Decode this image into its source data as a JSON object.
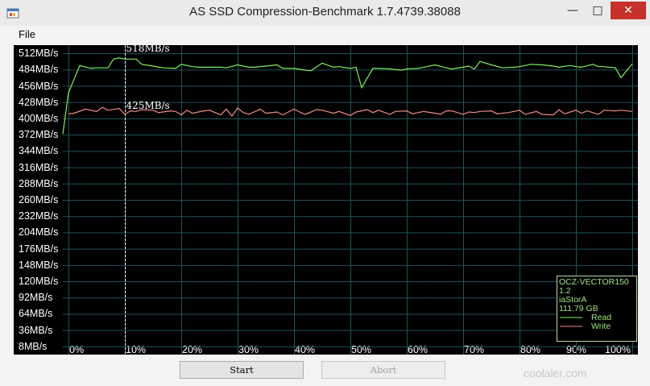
{
  "window": {
    "title": "AS SSD Compression-Benchmark 1.7.4739.38088",
    "minimize": "—",
    "maximize": "□",
    "close": "✕",
    "close_color": "#c7302b"
  },
  "menu": {
    "file": "File"
  },
  "chart_data": {
    "type": "line",
    "xlabel": "",
    "ylabel": "",
    "y_tick_labels": [
      "512MB/s",
      "484MB/s",
      "456MB/s",
      "428MB/s",
      "400MB/s",
      "372MB/s",
      "344MB/s",
      "316MB/s",
      "288MB/s",
      "260MB/s",
      "232MB/s",
      "204MB/s",
      "176MB/s",
      "148MB/s",
      "120MB/s",
      "92MB/s",
      "64MB/s",
      "36MB/s",
      "8MB/s"
    ],
    "y_ticks": [
      512,
      484,
      456,
      428,
      400,
      372,
      344,
      316,
      288,
      260,
      232,
      204,
      176,
      148,
      120,
      92,
      64,
      36,
      8
    ],
    "x_tick_labels": [
      "0%",
      "10%",
      "20%",
      "30%",
      "40%",
      "50%",
      "60%",
      "70%",
      "80%",
      "90%",
      "100%"
    ],
    "x_ticks": [
      0,
      10,
      20,
      30,
      40,
      50,
      60,
      70,
      80,
      90,
      100
    ],
    "ylim": [
      -6,
      526
    ],
    "xlim": [
      -1,
      101
    ],
    "grid": true,
    "marker_x": 10,
    "annotations": [
      "518MB/s",
      "425MB/s"
    ],
    "series": [
      {
        "name": "Read",
        "color": "#7df05a",
        "x": [
          -1,
          0,
          2,
          4,
          5,
          7,
          8,
          9,
          10,
          12,
          13,
          15,
          16,
          17,
          19,
          20,
          22,
          23,
          25,
          27,
          28,
          30,
          32,
          33,
          35,
          37,
          38,
          40,
          42,
          43,
          45,
          47,
          48,
          50,
          51,
          52,
          54,
          55,
          57,
          59,
          60,
          62,
          63,
          65,
          67,
          68,
          70,
          71,
          72,
          73,
          75,
          77,
          79,
          80,
          82,
          84,
          86,
          87,
          89,
          90,
          91,
          93,
          94,
          95,
          97,
          98,
          100
        ],
        "y": [
          373,
          444,
          491,
          486,
          487,
          487,
          502,
          504,
          502,
          502,
          493,
          490,
          488,
          487,
          486,
          493,
          489,
          488,
          488,
          488,
          487,
          492,
          488,
          488,
          490,
          492,
          486,
          486,
          483,
          482,
          495,
          488,
          489,
          486,
          488,
          453,
          486,
          486,
          485,
          483,
          485,
          486,
          488,
          492,
          487,
          485,
          488,
          490,
          485,
          498,
          492,
          487,
          488,
          489,
          493,
          492,
          490,
          488,
          491,
          489,
          488,
          493,
          489,
          489,
          487,
          470,
          494
        ],
        "approx": true
      },
      {
        "name": "Write",
        "color": "#f28d83",
        "x": [
          0,
          1,
          3,
          5,
          6,
          7,
          9,
          10,
          11,
          12,
          13,
          15,
          16,
          18,
          19,
          20,
          21,
          22,
          24,
          25,
          27,
          28,
          29,
          30,
          31,
          32,
          34,
          35,
          37,
          38,
          40,
          41,
          42,
          44,
          45,
          47,
          48,
          50,
          51,
          53,
          54,
          55,
          57,
          58,
          60,
          61,
          63,
          65,
          66,
          67,
          68,
          70,
          71,
          72,
          73,
          75,
          76,
          78,
          79,
          80,
          81,
          83,
          84,
          86,
          87,
          88,
          90,
          91,
          92,
          94,
          95,
          97,
          98,
          100
        ],
        "y": [
          408,
          409,
          416,
          412,
          419,
          414,
          417,
          407,
          413,
          412,
          415,
          414,
          410,
          413,
          412,
          406,
          414,
          409,
          413,
          414,
          406,
          416,
          404,
          418,
          410,
          407,
          416,
          409,
          411,
          406,
          416,
          411,
          407,
          415,
          414,
          409,
          412,
          405,
          411,
          415,
          410,
          414,
          407,
          412,
          413,
          408,
          412,
          409,
          407,
          413,
          413,
          407,
          411,
          410,
          412,
          413,
          408,
          410,
          412,
          414,
          407,
          412,
          407,
          406,
          415,
          408,
          414,
          409,
          413,
          407,
          414,
          413,
          414,
          412
        ],
        "approx": true
      }
    ]
  },
  "legend": {
    "drive": "OCZ-VECTOR150",
    "firmware": "1.2",
    "driver": "iaStorA",
    "capacity": "111.79 GB",
    "read_label": "Read",
    "write_label": "Write"
  },
  "buttons": {
    "start": "Start",
    "abort": "Abort"
  },
  "watermark": "coolaler.com"
}
